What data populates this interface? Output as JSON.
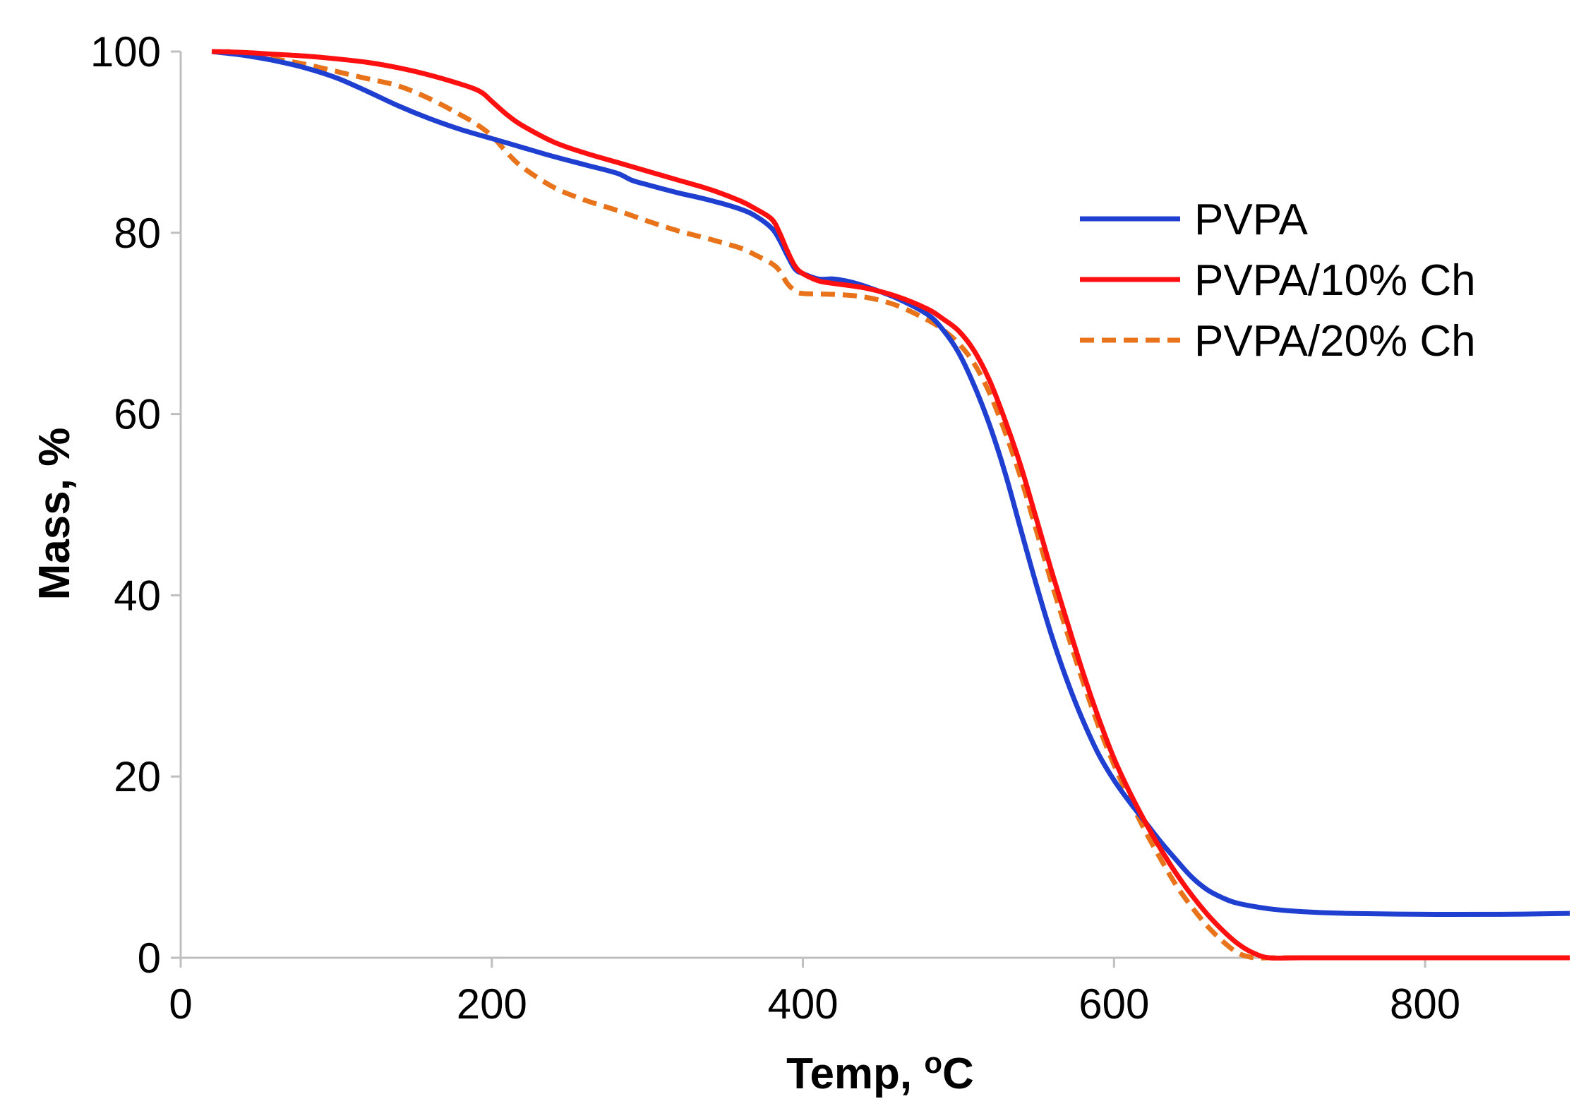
{
  "chart_data": {
    "type": "line",
    "title": "",
    "xlabel": "Temp, ",
    "xlabel_superscript": "o",
    "xlabel_unit": "C",
    "ylabel": "Mass, %",
    "xlim": [
      0,
      900
    ],
    "ylim": [
      0,
      100
    ],
    "xticks": [
      0,
      200,
      400,
      600,
      800
    ],
    "yticks": [
      0,
      20,
      40,
      60,
      80,
      100
    ],
    "xtick_labels": [
      "0",
      "200",
      "400",
      "600",
      "800"
    ],
    "ytick_labels": [
      "0",
      "20",
      "40",
      "60",
      "80",
      "100"
    ],
    "grid": false,
    "legend_position": "right",
    "series": [
      {
        "name": "PVPA",
        "color": "#1f3fd1",
        "dash": "solid",
        "x": [
          20,
          40,
          60,
          80,
          100,
          120,
          140,
          160,
          180,
          200,
          220,
          240,
          260,
          280,
          290,
          300,
          320,
          340,
          360,
          370,
          380,
          385,
          390,
          395,
          400,
          410,
          420,
          430,
          440,
          460,
          480,
          490,
          500,
          510,
          520,
          530,
          540,
          550,
          560,
          570,
          580,
          590,
          600,
          610,
          620,
          630,
          640,
          650,
          660,
          670,
          680,
          700,
          720,
          750,
          800,
          850,
          893
        ],
        "y": [
          100,
          99.6,
          99,
          98.2,
          97.1,
          95.6,
          94,
          92.6,
          91.4,
          90.4,
          89.4,
          88.4,
          87.5,
          86.6,
          85.8,
          85.3,
          84.4,
          83.6,
          82.6,
          81.8,
          80.5,
          79.2,
          77.5,
          76,
          75.5,
          74.9,
          74.9,
          74.6,
          74.1,
          72.8,
          71,
          69.3,
          66.8,
          63.2,
          58.8,
          53.5,
          47.3,
          41.2,
          35.5,
          30.5,
          26.2,
          22.5,
          19.6,
          17.2,
          15,
          12.8,
          10.8,
          8.9,
          7.5,
          6.6,
          6,
          5.4,
          5.1,
          4.9,
          4.8,
          4.8,
          4.9
        ]
      },
      {
        "name": "PVPA/10% Ch",
        "color": "#ff1010",
        "dash": "solid",
        "x": [
          20,
          40,
          60,
          80,
          100,
          120,
          140,
          160,
          180,
          190,
          195,
          200,
          210,
          220,
          240,
          260,
          280,
          300,
          320,
          340,
          360,
          370,
          380,
          385,
          390,
          395,
          400,
          410,
          420,
          440,
          460,
          480,
          490,
          500,
          510,
          520,
          530,
          540,
          550,
          560,
          570,
          580,
          590,
          600,
          610,
          620,
          630,
          640,
          650,
          660,
          670,
          680,
          690,
          700,
          720,
          750,
          800,
          850,
          893
        ],
        "y": [
          100,
          99.9,
          99.7,
          99.5,
          99.2,
          98.8,
          98.2,
          97.4,
          96.4,
          95.8,
          95.3,
          94.5,
          93,
          91.8,
          90,
          88.8,
          87.8,
          86.8,
          85.8,
          84.8,
          83.5,
          82.6,
          81.5,
          80,
          78,
          76.3,
          75.5,
          74.7,
          74.4,
          73.9,
          73,
          71.6,
          70.5,
          69.2,
          67,
          63.7,
          59.3,
          54.3,
          48.5,
          42.6,
          37,
          31.5,
          26.5,
          22,
          18.3,
          15,
          12,
          9.3,
          6.9,
          4.8,
          3,
          1.5,
          0.5,
          0,
          0,
          0,
          0,
          0,
          0
        ]
      },
      {
        "name": "PVPA/20% Ch",
        "color": "#e8731a",
        "dash": "dashed",
        "x": [
          30,
          40,
          60,
          80,
          100,
          120,
          140,
          160,
          180,
          190,
          200,
          210,
          220,
          240,
          260,
          280,
          300,
          320,
          340,
          360,
          370,
          380,
          385,
          390,
          395,
          400,
          420,
          440,
          460,
          480,
          490,
          500,
          510,
          520,
          530,
          540,
          550,
          560,
          570,
          580,
          590,
          600,
          610,
          620,
          630,
          640,
          650,
          660,
          670,
          680,
          690,
          700,
          720,
          750,
          800,
          850,
          893
        ],
        "y": [
          100,
          99.7,
          99.2,
          98.6,
          97.8,
          97,
          96.2,
          94.8,
          93,
          92,
          90.7,
          88.8,
          87.2,
          85,
          83.6,
          82.5,
          81.3,
          80.2,
          79.3,
          78.3,
          77.5,
          76.6,
          75.8,
          74.4,
          73.6,
          73.3,
          73.2,
          72.9,
          72,
          70.4,
          69.3,
          67.8,
          65.6,
          62.3,
          58,
          53,
          47.2,
          41.3,
          35.8,
          30.5,
          25.6,
          21.3,
          17.5,
          14,
          10.9,
          8,
          5.6,
          3.5,
          1.8,
          0.5,
          0,
          0,
          0,
          0,
          0,
          0,
          0
        ]
      }
    ]
  }
}
